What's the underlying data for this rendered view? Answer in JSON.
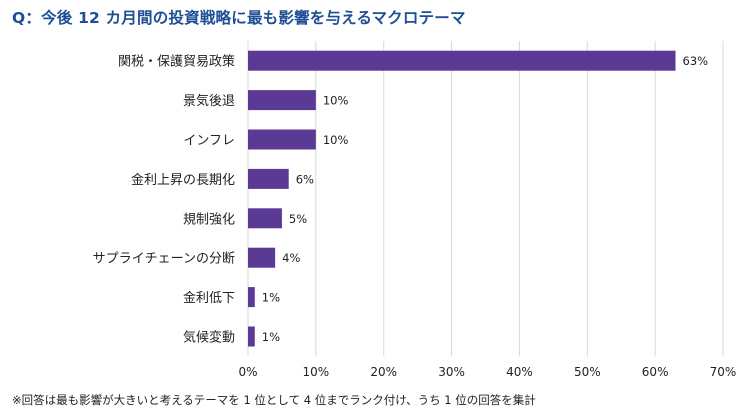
{
  "title": "Q：今後 12 カ月間の投資戦略に最も影響を与えるマクロテーマ",
  "footnote": "※回答は最も影響が大きいと考えるテーマを 1 位として 4 位までランク付け、うち 1 位の回答を集計",
  "colors": {
    "title": "#1f4e96",
    "bar": "#5b3a96",
    "gridline": "#d9d9d9",
    "text": "#222222"
  },
  "chart_data": {
    "type": "bar",
    "orientation": "horizontal",
    "categories": [
      "関税・保護貿易政策",
      "景気後退",
      "インフレ",
      "金利上昇の長期化",
      "規制強化",
      "サプライチェーンの分断",
      "金利低下",
      "気候変動"
    ],
    "values": [
      63,
      10,
      10,
      6,
      5,
      4,
      1,
      1
    ],
    "value_labels": [
      "63%",
      "10%",
      "10%",
      "6%",
      "5%",
      "4%",
      "1%",
      "1%"
    ],
    "xlim": [
      0,
      70
    ],
    "xticks": [
      0,
      10,
      20,
      30,
      40,
      50,
      60,
      70
    ],
    "xtick_labels": [
      "0%",
      "10%",
      "20%",
      "30%",
      "40%",
      "50%",
      "60%",
      "70%"
    ],
    "grid": true,
    "legend": "none"
  }
}
